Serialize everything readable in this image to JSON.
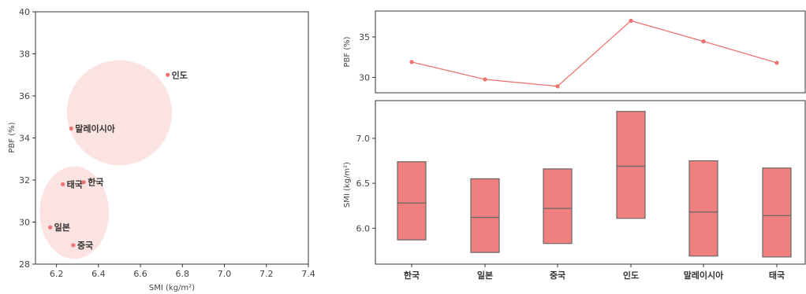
{
  "colors": {
    "accent": "#ee7470",
    "box_fill": "#f08080",
    "box_edge": "#666666",
    "cluster_fill": "#fbe3e1",
    "axis": "#333333"
  },
  "chart_data": [
    {
      "type": "scatter",
      "xlabel": "SMI (kg/m²)",
      "ylabel": "PBF (%)",
      "xlim": [
        6.1,
        7.4
      ],
      "ylim": [
        28,
        40
      ],
      "xticks": [
        "6.2",
        "6.4",
        "6.6",
        "6.8",
        "7.0",
        "7.2",
        "7.4"
      ],
      "yticks": [
        "28",
        "30",
        "32",
        "34",
        "36",
        "38",
        "40"
      ],
      "points": [
        {
          "label": "인도",
          "x": 6.73,
          "y": 37.0
        },
        {
          "label": "말레이시아",
          "x": 6.27,
          "y": 34.45
        },
        {
          "label": "태국",
          "x": 6.23,
          "y": 31.8
        },
        {
          "label": "한국",
          "x": 6.33,
          "y": 31.9
        },
        {
          "label": "일본",
          "x": 6.17,
          "y": 29.75
        },
        {
          "label": "중국",
          "x": 6.28,
          "y": 28.9
        }
      ],
      "clusters": [
        {
          "cx": 6.5,
          "cy": 35.2,
          "rx": 0.25,
          "ry": 2.5,
          "rotate": -26
        },
        {
          "cx": 6.285,
          "cy": 30.45,
          "rx": 0.165,
          "ry": 2.2,
          "rotate": 0
        }
      ],
      "grid": false
    },
    {
      "type": "line",
      "ylabel": "PBF (%)",
      "categories": [
        "한국",
        "일본",
        "중국",
        "인도",
        "말레이시아",
        "태국"
      ],
      "values": [
        31.9,
        29.75,
        28.9,
        37.0,
        34.45,
        31.8
      ],
      "ylim": [
        28.1,
        38.2
      ],
      "yticks": [
        "30",
        "35"
      ],
      "grid": false
    },
    {
      "type": "box",
      "ylabel": "SMI (kg/m²)",
      "categories": [
        "한국",
        "일본",
        "중국",
        "인도",
        "말레이시아",
        "태국"
      ],
      "boxes": [
        {
          "q1": 5.87,
          "median": 6.28,
          "q3": 6.74
        },
        {
          "q1": 5.73,
          "median": 6.12,
          "q3": 6.55
        },
        {
          "q1": 5.83,
          "median": 6.22,
          "q3": 6.66
        },
        {
          "q1": 6.11,
          "median": 6.69,
          "q3": 7.3
        },
        {
          "q1": 5.69,
          "median": 6.18,
          "q3": 6.75
        },
        {
          "q1": 5.68,
          "median": 6.14,
          "q3": 6.67
        }
      ],
      "ylim": [
        5.6,
        7.42
      ],
      "yticks": [
        "6.0",
        "6.5",
        "7.0"
      ],
      "grid": false
    }
  ]
}
